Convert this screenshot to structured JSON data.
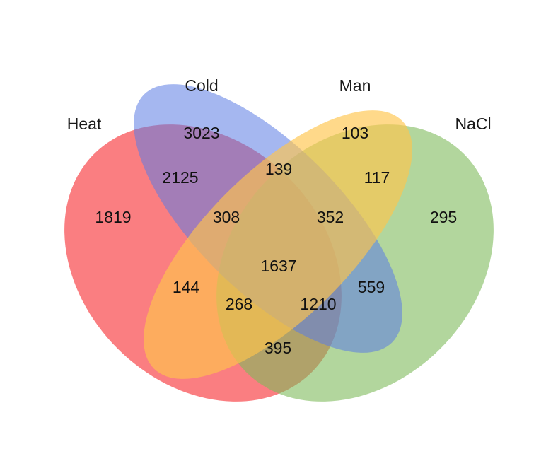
{
  "sets": [
    {
      "id": "heat",
      "label": "Heat",
      "color": "#F8474C"
    },
    {
      "id": "cold",
      "label": "Cold",
      "color": "#5B7CE4"
    },
    {
      "id": "man",
      "label": "Man",
      "color": "#FFC44C"
    },
    {
      "id": "nacl",
      "label": "NaCl",
      "color": "#7FBA5C"
    }
  ],
  "regions": [
    {
      "sets": [
        "cold"
      ],
      "count": "3023"
    },
    {
      "sets": [
        "man"
      ],
      "count": "103"
    },
    {
      "sets": [
        "cold",
        "man"
      ],
      "count": "139"
    },
    {
      "sets": [
        "heat",
        "cold"
      ],
      "count": "2125"
    },
    {
      "sets": [
        "man",
        "nacl"
      ],
      "count": "117"
    },
    {
      "sets": [
        "heat"
      ],
      "count": "1819"
    },
    {
      "sets": [
        "heat",
        "cold",
        "man"
      ],
      "count": "308"
    },
    {
      "sets": [
        "cold",
        "man",
        "nacl"
      ],
      "count": "352"
    },
    {
      "sets": [
        "nacl"
      ],
      "count": "295"
    },
    {
      "sets": [
        "heat",
        "cold",
        "man",
        "nacl"
      ],
      "count": "1637"
    },
    {
      "sets": [
        "heat",
        "man"
      ],
      "count": "144"
    },
    {
      "sets": [
        "cold",
        "nacl"
      ],
      "count": "559"
    },
    {
      "sets": [
        "heat",
        "man",
        "nacl"
      ],
      "count": "268"
    },
    {
      "sets": [
        "heat",
        "cold",
        "nacl"
      ],
      "count": "1210"
    },
    {
      "sets": [
        "heat",
        "nacl"
      ],
      "count": "395"
    }
  ]
}
